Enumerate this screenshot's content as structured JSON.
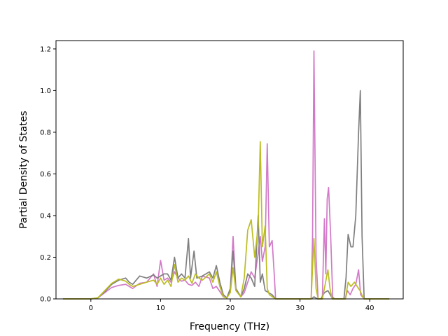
{
  "chart_data": {
    "type": "line",
    "title": "",
    "xlabel": "Frequency (THz)",
    "ylabel": "Partial Density of States",
    "xlim": [
      -5.0,
      44.8
    ],
    "ylim": [
      0.0,
      1.24
    ],
    "xticks": [
      0,
      10,
      20,
      30,
      40
    ],
    "yticks": [
      0.0,
      0.2,
      0.4,
      0.6,
      0.8,
      1.0,
      1.2
    ],
    "grid": false,
    "legend": "none",
    "series": [
      {
        "color": "#d279c8",
        "points": [
          [
            -4,
            0
          ],
          [
            0,
            0
          ],
          [
            1,
            0.005
          ],
          [
            2,
            0.03
          ],
          [
            3,
            0.055
          ],
          [
            4,
            0.065
          ],
          [
            5,
            0.07
          ],
          [
            5.5,
            0.06
          ],
          [
            6,
            0.05
          ],
          [
            7,
            0.075
          ],
          [
            8,
            0.08
          ],
          [
            9,
            0.12
          ],
          [
            9.5,
            0.06
          ],
          [
            10,
            0.185
          ],
          [
            10.5,
            0.09
          ],
          [
            11,
            0.1
          ],
          [
            11.5,
            0.08
          ],
          [
            12,
            0.13
          ],
          [
            12.5,
            0.1
          ],
          [
            13,
            0.085
          ],
          [
            13.5,
            0.09
          ],
          [
            14,
            0.07
          ],
          [
            14.5,
            0.065
          ],
          [
            15,
            0.08
          ],
          [
            15.5,
            0.06
          ],
          [
            16,
            0.11
          ],
          [
            17,
            0.1
          ],
          [
            17.5,
            0.05
          ],
          [
            18,
            0.06
          ],
          [
            19,
            0.01
          ],
          [
            19.5,
            0.005
          ],
          [
            20,
            0.04
          ],
          [
            20.4,
            0.3
          ],
          [
            20.8,
            0.05
          ],
          [
            21.5,
            0.01
          ],
          [
            22,
            0.03
          ],
          [
            22.5,
            0.08
          ],
          [
            23,
            0.13
          ],
          [
            23.5,
            0.1
          ],
          [
            24,
            0.22
          ],
          [
            24.3,
            0.3
          ],
          [
            24.6,
            0.18
          ],
          [
            25,
            0.25
          ],
          [
            25.3,
            0.745
          ],
          [
            25.6,
            0.25
          ],
          [
            26,
            0.28
          ],
          [
            26.3,
            0.12
          ],
          [
            26.5,
            0
          ],
          [
            31.6,
            0
          ],
          [
            31.8,
            0.3
          ],
          [
            32,
            1.19
          ],
          [
            32.3,
            0.2
          ],
          [
            32.6,
            0
          ],
          [
            33.2,
            0
          ],
          [
            33.5,
            0.385
          ],
          [
            33.7,
            0.12
          ],
          [
            33.9,
            0.48
          ],
          [
            34.1,
            0.535
          ],
          [
            34.4,
            0.3
          ],
          [
            34.7,
            0
          ],
          [
            36.5,
            0
          ],
          [
            36.8,
            0.04
          ],
          [
            37.2,
            0.02
          ],
          [
            37.6,
            0.05
          ],
          [
            38,
            0.07
          ],
          [
            38.4,
            0.14
          ],
          [
            38.7,
            0.02
          ],
          [
            39.2,
            0
          ],
          [
            42.8,
            0
          ]
        ]
      },
      {
        "color": "#7f7f7f",
        "points": [
          [
            -4,
            0
          ],
          [
            0,
            0
          ],
          [
            1,
            0.005
          ],
          [
            2,
            0.035
          ],
          [
            3,
            0.07
          ],
          [
            4,
            0.09
          ],
          [
            5,
            0.1
          ],
          [
            5.5,
            0.08
          ],
          [
            6,
            0.07
          ],
          [
            7,
            0.11
          ],
          [
            8,
            0.1
          ],
          [
            9,
            0.115
          ],
          [
            9.5,
            0.1
          ],
          [
            10,
            0.11
          ],
          [
            10.5,
            0.12
          ],
          [
            11,
            0.12
          ],
          [
            11.5,
            0.09
          ],
          [
            12,
            0.2
          ],
          [
            12.5,
            0.1
          ],
          [
            13,
            0.12
          ],
          [
            13.5,
            0.1
          ],
          [
            14,
            0.29
          ],
          [
            14.3,
            0.1
          ],
          [
            14.8,
            0.23
          ],
          [
            15.2,
            0.1
          ],
          [
            16,
            0.11
          ],
          [
            17,
            0.13
          ],
          [
            17.5,
            0.1
          ],
          [
            18,
            0.16
          ],
          [
            18.5,
            0.08
          ],
          [
            19,
            0.02
          ],
          [
            19.5,
            0.005
          ],
          [
            20,
            0.05
          ],
          [
            20.4,
            0.23
          ],
          [
            20.8,
            0.05
          ],
          [
            21.5,
            0.01
          ],
          [
            22,
            0.05
          ],
          [
            22.5,
            0.12
          ],
          [
            23,
            0.1
          ],
          [
            23.5,
            0.06
          ],
          [
            24,
            0.4
          ],
          [
            24.3,
            0.08
          ],
          [
            24.6,
            0.12
          ],
          [
            25,
            0.04
          ],
          [
            25.5,
            0.03
          ],
          [
            26,
            0.02
          ],
          [
            26.5,
            0
          ],
          [
            31.6,
            0
          ],
          [
            32,
            0.01
          ],
          [
            32.5,
            0
          ],
          [
            33,
            0
          ],
          [
            33.5,
            0.03
          ],
          [
            34,
            0.04
          ],
          [
            34.5,
            0.01
          ],
          [
            35,
            0
          ],
          [
            36.3,
            0
          ],
          [
            36.6,
            0.1
          ],
          [
            36.9,
            0.31
          ],
          [
            37.3,
            0.25
          ],
          [
            37.6,
            0.25
          ],
          [
            38,
            0.4
          ],
          [
            38.4,
            0.8
          ],
          [
            38.65,
            1.0
          ],
          [
            38.9,
            0.3
          ],
          [
            39.2,
            0
          ],
          [
            42.8,
            0
          ]
        ]
      },
      {
        "color": "#bcbd22",
        "points": [
          [
            -4,
            0
          ],
          [
            0,
            0
          ],
          [
            1,
            0.005
          ],
          [
            2,
            0.04
          ],
          [
            3,
            0.075
          ],
          [
            4,
            0.095
          ],
          [
            5,
            0.085
          ],
          [
            5.5,
            0.07
          ],
          [
            6,
            0.06
          ],
          [
            7,
            0.07
          ],
          [
            8,
            0.08
          ],
          [
            9,
            0.09
          ],
          [
            9.5,
            0.07
          ],
          [
            10,
            0.1
          ],
          [
            10.5,
            0.07
          ],
          [
            11,
            0.09
          ],
          [
            11.5,
            0.06
          ],
          [
            12,
            0.165
          ],
          [
            12.5,
            0.08
          ],
          [
            13,
            0.1
          ],
          [
            13.5,
            0.09
          ],
          [
            14,
            0.11
          ],
          [
            14.5,
            0.075
          ],
          [
            15,
            0.12
          ],
          [
            15.5,
            0.1
          ],
          [
            16,
            0.09
          ],
          [
            17,
            0.12
          ],
          [
            17.5,
            0.08
          ],
          [
            18,
            0.13
          ],
          [
            18.5,
            0.06
          ],
          [
            19,
            0.01
          ],
          [
            19.5,
            0.005
          ],
          [
            20,
            0.03
          ],
          [
            20.4,
            0.15
          ],
          [
            20.8,
            0.04
          ],
          [
            21.5,
            0.01
          ],
          [
            22,
            0.1
          ],
          [
            22.5,
            0.33
          ],
          [
            23,
            0.38
          ],
          [
            23.5,
            0.2
          ],
          [
            24,
            0.35
          ],
          [
            24.3,
            0.755
          ],
          [
            24.6,
            0.25
          ],
          [
            25,
            0.35
          ],
          [
            25.3,
            0.05
          ],
          [
            25.6,
            0.02
          ],
          [
            26.5,
            0
          ],
          [
            31.6,
            0
          ],
          [
            31.8,
            0.15
          ],
          [
            32,
            0.29
          ],
          [
            32.3,
            0.05
          ],
          [
            32.6,
            0
          ],
          [
            33.2,
            0
          ],
          [
            33.5,
            0.05
          ],
          [
            34,
            0.14
          ],
          [
            34.3,
            0.05
          ],
          [
            34.6,
            0
          ],
          [
            36.5,
            0
          ],
          [
            36.9,
            0.08
          ],
          [
            37.3,
            0.06
          ],
          [
            37.8,
            0.08
          ],
          [
            38.2,
            0.06
          ],
          [
            38.6,
            0.04
          ],
          [
            39,
            0.01
          ],
          [
            39.2,
            0
          ],
          [
            42.8,
            0
          ]
        ]
      }
    ]
  }
}
